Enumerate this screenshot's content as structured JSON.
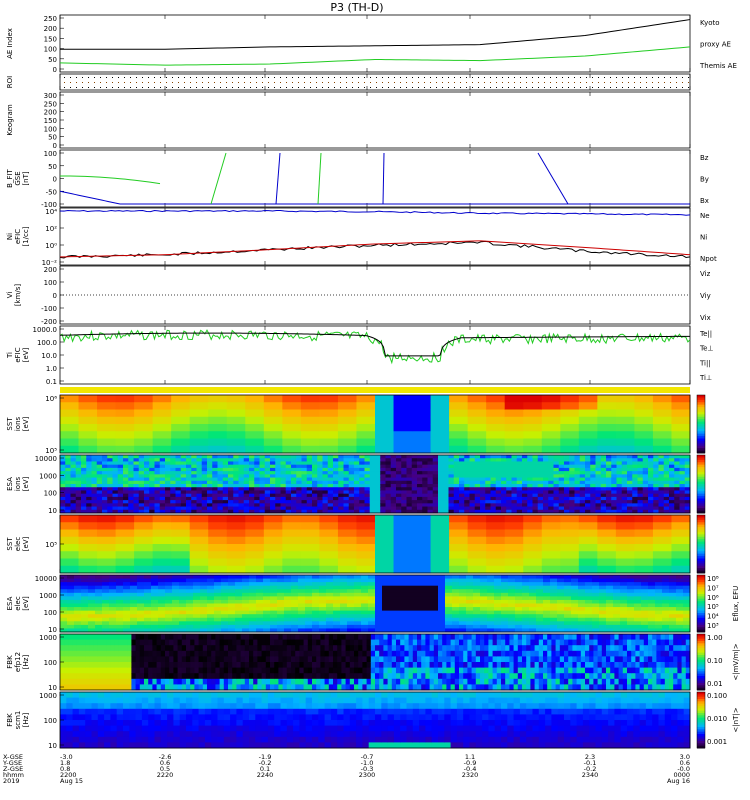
{
  "title": "P3 (TH-D)",
  "colors": {
    "red": "#cc0000",
    "green": "#22cc22",
    "blue": "#0000cc",
    "black": "#000000",
    "kyoto": "#22cc22"
  },
  "panels": {
    "ae": {
      "ylabel": "AE Index",
      "ticks": [
        "250",
        "200",
        "150",
        "100",
        "50",
        "0"
      ],
      "legend": [
        {
          "text": "Kyoto",
          "color": "#22cc22"
        },
        {
          "text": "proxy AE",
          "color": "#22cc22"
        },
        {
          "text": "Themis AE",
          "color": "#000000"
        }
      ]
    },
    "roi": {
      "ylabel": "ROI"
    },
    "keo": {
      "ylabel": "Keogram",
      "ticks": [
        "300",
        "250",
        "200",
        "150",
        "100",
        "50",
        "0"
      ]
    },
    "bfit": {
      "ylabel": [
        "B_FIT",
        "GSE",
        "[nT]"
      ],
      "ticks": [
        "100",
        "50",
        "0",
        "-50",
        "-100"
      ],
      "legend": [
        {
          "text": "Bz",
          "color": "#cc0000"
        },
        {
          "text": "By",
          "color": "#22cc22"
        },
        {
          "text": "Bx",
          "color": "#0000cc"
        }
      ]
    },
    "ni": {
      "ylabel": [
        "Ni",
        "eFIC",
        "[1/cc]"
      ],
      "ticks": [
        "10⁴",
        "10²",
        "10⁰",
        "10⁻²"
      ],
      "legend": [
        {
          "text": "Ne",
          "color": "#cc0000"
        },
        {
          "text": "Ni",
          "color": "#000000"
        },
        {
          "text": "Npot",
          "color": "#0000cc"
        }
      ]
    },
    "vi": {
      "ylabel": [
        "Vi",
        "[km/s]"
      ],
      "ticks": [
        "200",
        "100",
        "0",
        "-100",
        "-200"
      ],
      "legend": [
        {
          "text": "Viz",
          "color": "#cc0000"
        },
        {
          "text": "Viy",
          "color": "#22cc22"
        },
        {
          "text": "Vix",
          "color": "#0000cc"
        }
      ]
    },
    "ti": {
      "ylabel": [
        "Ti",
        "eFIC",
        "[eV]"
      ],
      "ticks": [
        "1000.0",
        "100.0",
        "10.0",
        "1.0",
        "0.1"
      ],
      "legend": [
        {
          "text": "Te||",
          "color": "#000000"
        },
        {
          "text": "Te⊥",
          "color": "#cc0000"
        },
        {
          "text": "Ti||",
          "color": "#22cc22"
        },
        {
          "text": "Ti⊥",
          "color": "#0000cc"
        }
      ]
    },
    "sst_i": {
      "ylabel": [
        "SST",
        "ions",
        "[eV]"
      ],
      "ticks": [
        "10⁶",
        "10⁵"
      ],
      "cbar": "Eflux, EFU"
    },
    "esa_i": {
      "ylabel": [
        "ESA",
        "ions",
        "[eV]"
      ],
      "ticks": [
        "10000",
        "1000",
        "100",
        "10"
      ],
      "cbar": "Eflux, EFU"
    },
    "sst_e": {
      "ylabel": [
        "SST",
        "elec",
        "[eV]"
      ],
      "ticks": [
        "10⁵"
      ],
      "cbar": "Eflux, EFU"
    },
    "esa_e": {
      "ylabel": [
        "ESA",
        "elec",
        "[eV]"
      ],
      "ticks": [
        "10000",
        "1000",
        "100",
        "10"
      ],
      "cbar": "Eflux, EFU"
    },
    "fbk_e": {
      "ylabel": [
        "FBK",
        "efp12",
        "[Hz]"
      ],
      "ticks": [
        "1000",
        "100",
        "10"
      ],
      "cbar": "<|mV/m|>",
      "cbar_ticks": [
        "1.00",
        "0.10",
        "0.01"
      ]
    },
    "fbk_b": {
      "ylabel": [
        "FBK",
        "scm1",
        "[Hz]"
      ],
      "ticks": [
        "1000",
        "100",
        "10"
      ],
      "cbar": "<|nT|>",
      "cbar_ticks": [
        "0.100",
        "0.010",
        "0.001"
      ]
    }
  },
  "cbar_ticks_eflux": [
    "10⁸",
    "10⁷",
    "10⁶",
    "10⁵",
    "10⁴",
    "10³"
  ],
  "footer": {
    "labels": [
      "X-GSE",
      "Y-GSE",
      "Z-GSE",
      "hhmm",
      "2019"
    ],
    "columns": [
      {
        "x": "-3.0",
        "y": "1.8",
        "z": "0.8",
        "t": "2200",
        "d": "Aug 15"
      },
      {
        "x": "-2.6",
        "y": "0.6",
        "z": "0.5",
        "t": "2220",
        "d": ""
      },
      {
        "x": "-1.9",
        "y": "-0.2",
        "z": "0.1",
        "t": "2240",
        "d": ""
      },
      {
        "x": "-0.7",
        "y": "-1.0",
        "z": "-0.3",
        "t": "2300",
        "d": ""
      },
      {
        "x": "1.1",
        "y": "-0.9",
        "z": "-0.4",
        "t": "2320",
        "d": ""
      },
      {
        "x": "2.3",
        "y": "-0.1",
        "z": "-0.2",
        "t": "2340",
        "d": ""
      },
      {
        "x": "3.0",
        "y": "0.6",
        "z": "-0.0",
        "t": "0000",
        "d": "Aug 16"
      }
    ]
  },
  "chart_data": [
    {
      "type": "line",
      "title": "P3 (TH-D)",
      "ylabel": "AE Index",
      "ylim": [
        0,
        250
      ],
      "x": [
        "2200",
        "2220",
        "2240",
        "2300",
        "2320",
        "2340",
        "0000"
      ],
      "series": [
        {
          "name": "Themis AE",
          "values": [
            100,
            100,
            110,
            115,
            120,
            160,
            230
          ]
        },
        {
          "name": "Kyoto proxy AE",
          "values": [
            40,
            30,
            35,
            55,
            50,
            70,
            110
          ]
        }
      ]
    },
    {
      "type": "line",
      "ylabel": "B_FIT GSE [nT]",
      "ylim": [
        -100,
        100
      ],
      "x": [
        "2200",
        "2220",
        "2240",
        "2300",
        "2320",
        "2340",
        "0000"
      ],
      "series": [
        {
          "name": "By",
          "values": [
            10,
            -20,
            null,
            null,
            null,
            null,
            null
          ]
        },
        {
          "name": "Bx",
          "values": [
            -50,
            -100,
            -100,
            -100,
            -100,
            -100,
            -100
          ]
        }
      ]
    },
    {
      "type": "line",
      "ylabel": "Ni eFIC [1/cc]",
      "ylim": [
        0.01,
        100000
      ],
      "x": [
        "2200",
        "2220",
        "2240",
        "2300",
        "2320",
        "2340",
        "0000"
      ],
      "series": [
        {
          "name": "Npot",
          "values": [
            100000,
            100000,
            100000,
            80000,
            50000,
            40000,
            30000
          ]
        },
        {
          "name": "Ni",
          "values": [
            0.05,
            0.1,
            0.5,
            2,
            5,
            0.3,
            0.05
          ]
        },
        {
          "name": "Ne",
          "values": [
            0.05,
            0.1,
            0.5,
            3,
            8,
            1,
            0.1
          ]
        }
      ]
    },
    {
      "type": "line",
      "ylabel": "Ti eFIC [eV]",
      "ylim": [
        0.1,
        5000
      ],
      "x": [
        "2200",
        "2220",
        "2240",
        "2300",
        "2320",
        "2340",
        "0000"
      ],
      "series": [
        {
          "name": "Te||",
          "values": [
            800,
            1500,
            800,
            20,
            5,
            500,
            800
          ]
        },
        {
          "name": "Ti||",
          "values": [
            600,
            500,
            900,
            15,
            5,
            600,
            700
          ]
        }
      ]
    }
  ]
}
